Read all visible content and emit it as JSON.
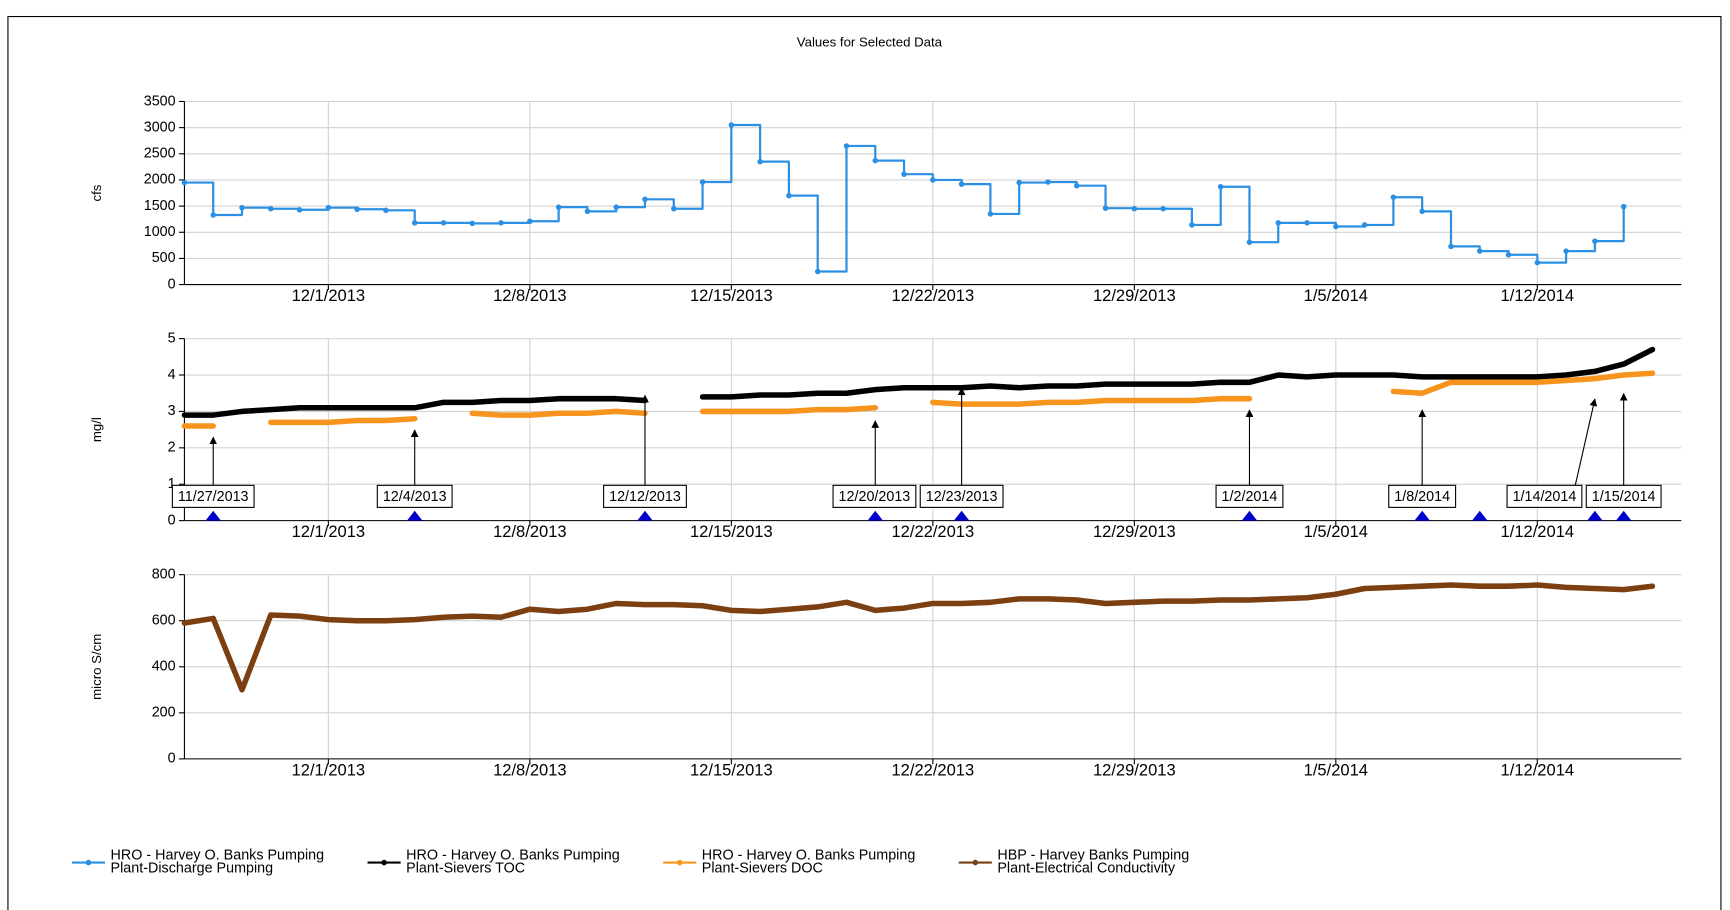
{
  "chart_data": [
    {
      "type": "line",
      "title": "Values for Selected Data",
      "ylabel": "cfs",
      "step": "post",
      "point_markers": true,
      "grid": true,
      "xlim": [
        "2013-11-26",
        "2014-01-17"
      ],
      "xticks": [
        {
          "value": "2013-12-01",
          "label": "12/1/2013"
        },
        {
          "value": "2013-12-08",
          "label": "12/8/2013"
        },
        {
          "value": "2013-12-15",
          "label": "12/15/2013"
        },
        {
          "value": "2013-12-22",
          "label": "12/22/2013"
        },
        {
          "value": "2013-12-29",
          "label": "12/29/2013"
        },
        {
          "value": "2014-01-05",
          "label": "1/5/2014"
        },
        {
          "value": "2014-01-12",
          "label": "1/12/2014"
        }
      ],
      "ylim": [
        0,
        3500
      ],
      "yticks": [
        0,
        500,
        1000,
        1500,
        2000,
        2500,
        3000,
        3500
      ],
      "x": [
        "2013-11-26",
        "2013-11-27",
        "2013-11-28",
        "2013-11-29",
        "2013-11-30",
        "2013-12-01",
        "2013-12-02",
        "2013-12-03",
        "2013-12-04",
        "2013-12-05",
        "2013-12-06",
        "2013-12-07",
        "2013-12-08",
        "2013-12-09",
        "2013-12-10",
        "2013-12-11",
        "2013-12-12",
        "2013-12-13",
        "2013-12-14",
        "2013-12-15",
        "2013-12-16",
        "2013-12-17",
        "2013-12-18",
        "2013-12-19",
        "2013-12-20",
        "2013-12-21",
        "2013-12-22",
        "2013-12-23",
        "2013-12-24",
        "2013-12-25",
        "2013-12-26",
        "2013-12-27",
        "2013-12-28",
        "2013-12-29",
        "2013-12-30",
        "2013-12-31",
        "2014-01-01",
        "2014-01-02",
        "2014-01-03",
        "2014-01-04",
        "2014-01-05",
        "2014-01-06",
        "2014-01-07",
        "2014-01-08",
        "2014-01-09",
        "2014-01-10",
        "2014-01-11",
        "2014-01-12",
        "2014-01-13",
        "2014-01-14",
        "2014-01-15"
      ],
      "series": [
        {
          "name": "HRO - Harvey O. Banks Pumping Plant-Discharge Pumping",
          "color": "#2b90e3",
          "values": [
            1950,
            1330,
            1470,
            1450,
            1430,
            1470,
            1440,
            1420,
            1180,
            1180,
            1170,
            1180,
            1210,
            1480,
            1400,
            1480,
            1630,
            1450,
            1960,
            3050,
            2350,
            1700,
            250,
            2650,
            2370,
            2110,
            2000,
            1920,
            1350,
            1950,
            1960,
            1890,
            1460,
            1450,
            1450,
            1140,
            1870,
            810,
            1180,
            1180,
            1110,
            1140,
            1670,
            1400,
            730,
            640,
            570,
            420,
            640,
            830,
            1490
          ]
        }
      ]
    },
    {
      "type": "line",
      "ylabel": "mg/l",
      "grid": true,
      "xlim": [
        "2013-11-26",
        "2014-01-17"
      ],
      "xticks": [
        {
          "value": "2013-12-01",
          "label": "12/1/2013"
        },
        {
          "value": "2013-12-08",
          "label": "12/8/2013"
        },
        {
          "value": "2013-12-15",
          "label": "12/15/2013"
        },
        {
          "value": "2013-12-22",
          "label": "12/22/2013"
        },
        {
          "value": "2013-12-29",
          "label": "12/29/2013"
        },
        {
          "value": "2014-01-05",
          "label": "1/5/2014"
        },
        {
          "value": "2014-01-12",
          "label": "1/12/2014"
        }
      ],
      "ylim": [
        0,
        5
      ],
      "yticks": [
        0,
        1,
        2,
        3,
        4,
        5
      ],
      "x": [
        "2013-11-26",
        "2013-11-27",
        "2013-11-28",
        "2013-11-29",
        "2013-11-30",
        "2013-12-01",
        "2013-12-02",
        "2013-12-03",
        "2013-12-04",
        "2013-12-05",
        "2013-12-06",
        "2013-12-07",
        "2013-12-08",
        "2013-12-09",
        "2013-12-10",
        "2013-12-11",
        "2013-12-12",
        "2013-12-13",
        "2013-12-14",
        "2013-12-15",
        "2013-12-16",
        "2013-12-17",
        "2013-12-18",
        "2013-12-19",
        "2013-12-20",
        "2013-12-21",
        "2013-12-22",
        "2013-12-23",
        "2013-12-24",
        "2013-12-25",
        "2013-12-26",
        "2013-12-27",
        "2013-12-28",
        "2013-12-29",
        "2013-12-30",
        "2013-12-31",
        "2014-01-01",
        "2014-01-02",
        "2014-01-03",
        "2014-01-04",
        "2014-01-05",
        "2014-01-06",
        "2014-01-07",
        "2014-01-08",
        "2014-01-09",
        "2014-01-10",
        "2014-01-11",
        "2014-01-12",
        "2014-01-13",
        "2014-01-14",
        "2014-01-15",
        "2014-01-16"
      ],
      "series": [
        {
          "name": "HRO - Harvey O. Banks Pumping Plant-Sievers TOC",
          "color": "#000000",
          "values": [
            2.9,
            2.9,
            3.0,
            3.05,
            3.1,
            3.1,
            3.1,
            3.1,
            3.1,
            3.25,
            3.25,
            3.3,
            3.3,
            3.35,
            3.35,
            3.35,
            3.3,
            null,
            3.4,
            3.4,
            3.45,
            3.45,
            3.5,
            3.5,
            3.6,
            3.65,
            3.65,
            3.65,
            3.7,
            3.65,
            3.7,
            3.7,
            3.75,
            3.75,
            3.75,
            3.75,
            3.8,
            3.8,
            4.0,
            3.95,
            4.0,
            4.0,
            4.0,
            3.95,
            3.95,
            3.95,
            3.95,
            3.95,
            4.0,
            4.1,
            4.3,
            4.7
          ]
        },
        {
          "name": "HRO - Harvey O. Banks Pumping Plant-Sievers DOC",
          "color": "#f7941d",
          "values": [
            2.6,
            2.6,
            null,
            2.7,
            2.7,
            2.7,
            2.75,
            2.75,
            2.8,
            null,
            2.95,
            2.9,
            2.9,
            2.95,
            2.95,
            3.0,
            2.95,
            null,
            3.0,
            3.0,
            3.0,
            3.0,
            3.05,
            3.05,
            3.1,
            null,
            3.25,
            3.2,
            3.2,
            3.2,
            3.25,
            3.25,
            3.3,
            3.3,
            3.3,
            3.3,
            3.35,
            3.35,
            null,
            null,
            null,
            null,
            3.55,
            3.5,
            3.8,
            3.8,
            3.8,
            3.8,
            3.85,
            3.9,
            4.0,
            4.05
          ]
        }
      ],
      "annotations": [
        {
          "x": "2013-11-27",
          "y": 2.35,
          "label": "11/27/2013"
        },
        {
          "x": "2013-12-04",
          "y": 2.55,
          "label": "12/4/2013"
        },
        {
          "x": "2013-12-12",
          "y": 3.5,
          "label": "12/12/2013"
        },
        {
          "x": "2013-12-20",
          "y": 2.8,
          "label": "12/20/2013"
        },
        {
          "x": "2013-12-23",
          "y": 3.7,
          "label": "12/23/2013"
        },
        {
          "x": "2014-01-02",
          "y": 3.1,
          "label": "1/2/2014"
        },
        {
          "x": "2014-01-08",
          "y": 3.1,
          "label": "1/8/2014"
        },
        {
          "x": "2014-01-14",
          "y": 3.4,
          "label": "1/14/2014"
        },
        {
          "x": "2014-01-15",
          "y": 3.55,
          "label": "1/15/2014"
        }
      ],
      "event_markers": {
        "color": "#0000cd",
        "x": [
          "2013-11-27",
          "2013-12-04",
          "2013-12-12",
          "2013-12-20",
          "2013-12-23",
          "2014-01-02",
          "2014-01-08",
          "2014-01-10",
          "2014-01-14",
          "2014-01-15"
        ]
      }
    },
    {
      "type": "line",
      "ylabel": "micro S/cm",
      "grid": true,
      "xlim": [
        "2013-11-26",
        "2014-01-17"
      ],
      "xticks": [
        {
          "value": "2013-12-01",
          "label": "12/1/2013"
        },
        {
          "value": "2013-12-08",
          "label": "12/8/2013"
        },
        {
          "value": "2013-12-15",
          "label": "12/15/2013"
        },
        {
          "value": "2013-12-22",
          "label": "12/22/2013"
        },
        {
          "value": "2013-12-29",
          "label": "12/29/2013"
        },
        {
          "value": "2014-01-05",
          "label": "1/5/2014"
        },
        {
          "value": "2014-01-12",
          "label": "1/12/2014"
        }
      ],
      "ylim": [
        0,
        800
      ],
      "yticks": [
        0,
        200,
        400,
        600,
        800
      ],
      "x": [
        "2013-11-26",
        "2013-11-27",
        "2013-11-28",
        "2013-11-29",
        "2013-11-30",
        "2013-12-01",
        "2013-12-02",
        "2013-12-03",
        "2013-12-04",
        "2013-12-05",
        "2013-12-06",
        "2013-12-07",
        "2013-12-08",
        "2013-12-09",
        "2013-12-10",
        "2013-12-11",
        "2013-12-12",
        "2013-12-13",
        "2013-12-14",
        "2013-12-15",
        "2013-12-16",
        "2013-12-17",
        "2013-12-18",
        "2013-12-19",
        "2013-12-20",
        "2013-12-21",
        "2013-12-22",
        "2013-12-23",
        "2013-12-24",
        "2013-12-25",
        "2013-12-26",
        "2013-12-27",
        "2013-12-28",
        "2013-12-29",
        "2013-12-30",
        "2013-12-31",
        "2014-01-01",
        "2014-01-02",
        "2014-01-03",
        "2014-01-04",
        "2014-01-05",
        "2014-01-06",
        "2014-01-07",
        "2014-01-08",
        "2014-01-09",
        "2014-01-10",
        "2014-01-11",
        "2014-01-12",
        "2014-01-13",
        "2014-01-14",
        "2014-01-15",
        "2014-01-16"
      ],
      "series": [
        {
          "name": "HBP - Harvey Banks Pumping Plant-Electrical Conductivity",
          "color": "#7b3f12",
          "values": [
            590,
            610,
            300,
            625,
            620,
            605,
            600,
            600,
            605,
            615,
            620,
            615,
            650,
            640,
            650,
            675,
            670,
            670,
            665,
            645,
            640,
            650,
            660,
            680,
            645,
            655,
            675,
            675,
            680,
            695,
            695,
            690,
            675,
            680,
            685,
            685,
            690,
            690,
            695,
            700,
            715,
            740,
            745,
            750,
            755,
            750,
            750,
            755,
            745,
            740,
            735,
            750
          ]
        }
      ]
    }
  ]
}
